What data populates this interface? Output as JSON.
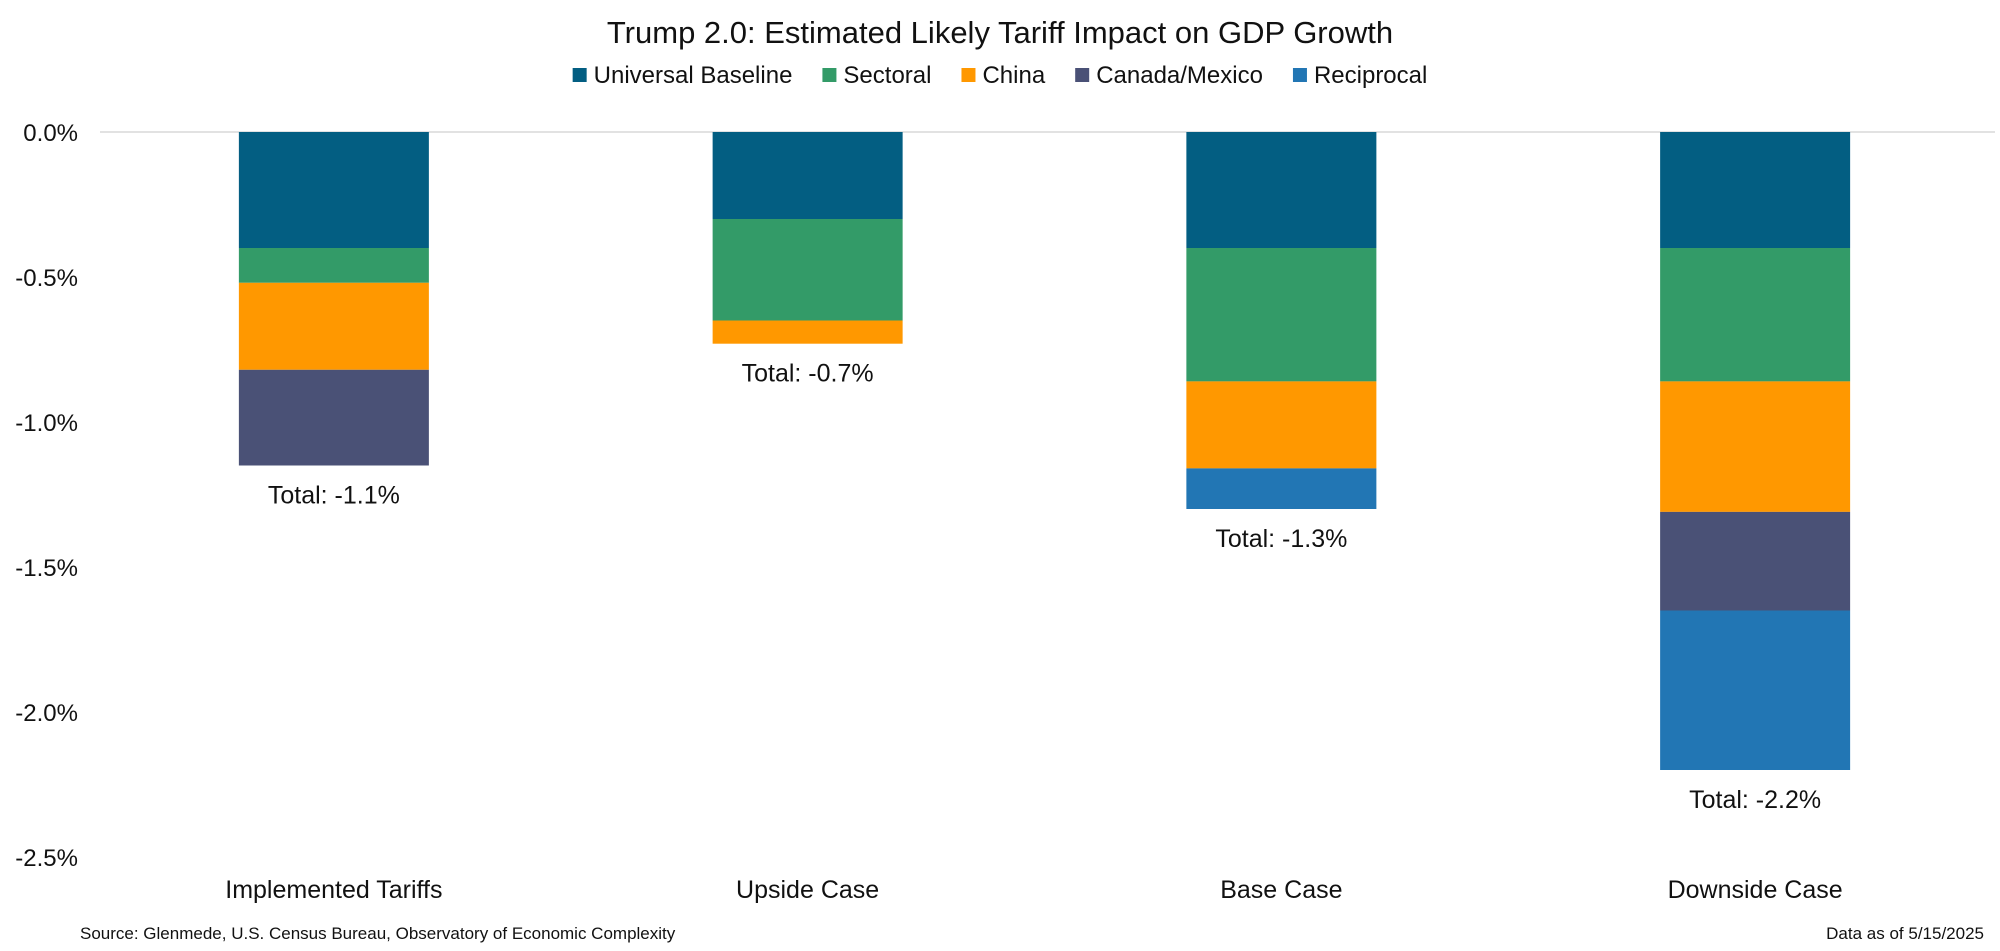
{
  "chart_data": {
    "type": "bar",
    "stacked": true,
    "title": "Trump 2.0: Estimated Likely Tariff Impact on GDP Growth",
    "legend_position": "top-center",
    "grid": false,
    "ylim": [
      -2.5,
      0.0
    ],
    "yticks": [
      0.0,
      -0.5,
      -1.0,
      -1.5,
      -2.0,
      -2.5
    ],
    "ytick_labels": [
      "0.0%",
      "-0.5%",
      "-1.0%",
      "-1.5%",
      "-2.0%",
      "-2.5%"
    ],
    "xlabel": "",
    "ylabel": "",
    "categories": [
      "Implemented Tariffs",
      "Upside Case",
      "Base Case",
      "Downside Case"
    ],
    "series": [
      {
        "name": "Universal Baseline",
        "color": "#035e82",
        "values": [
          -0.4,
          -0.3,
          -0.4,
          -0.4
        ]
      },
      {
        "name": "Sectoral",
        "color": "#339b68",
        "values": [
          -0.12,
          -0.35,
          -0.46,
          -0.46
        ]
      },
      {
        "name": "China",
        "color": "#ff9800",
        "values": [
          -0.3,
          -0.08,
          -0.3,
          -0.45
        ]
      },
      {
        "name": "Canada/Mexico",
        "color": "#4a5176",
        "values": [
          -0.33,
          0.0,
          0.0,
          -0.34
        ]
      },
      {
        "name": "Reciprocal",
        "color": "#2276b4",
        "values": [
          0.0,
          0.0,
          -0.14,
          -0.55
        ]
      }
    ],
    "totals": [
      -1.1,
      -0.7,
      -1.3,
      -2.2
    ],
    "total_labels": [
      "Total: -1.1%",
      "Total: -0.7%",
      "Total: -1.3%",
      "Total: -2.2%"
    ],
    "axis_line_color": "#d9d9d9"
  },
  "footer": {
    "source": "Source: Glenmede, U.S. Census Bureau, Observatory of Economic Complexity",
    "date": "Data as of 5/15/2025"
  }
}
